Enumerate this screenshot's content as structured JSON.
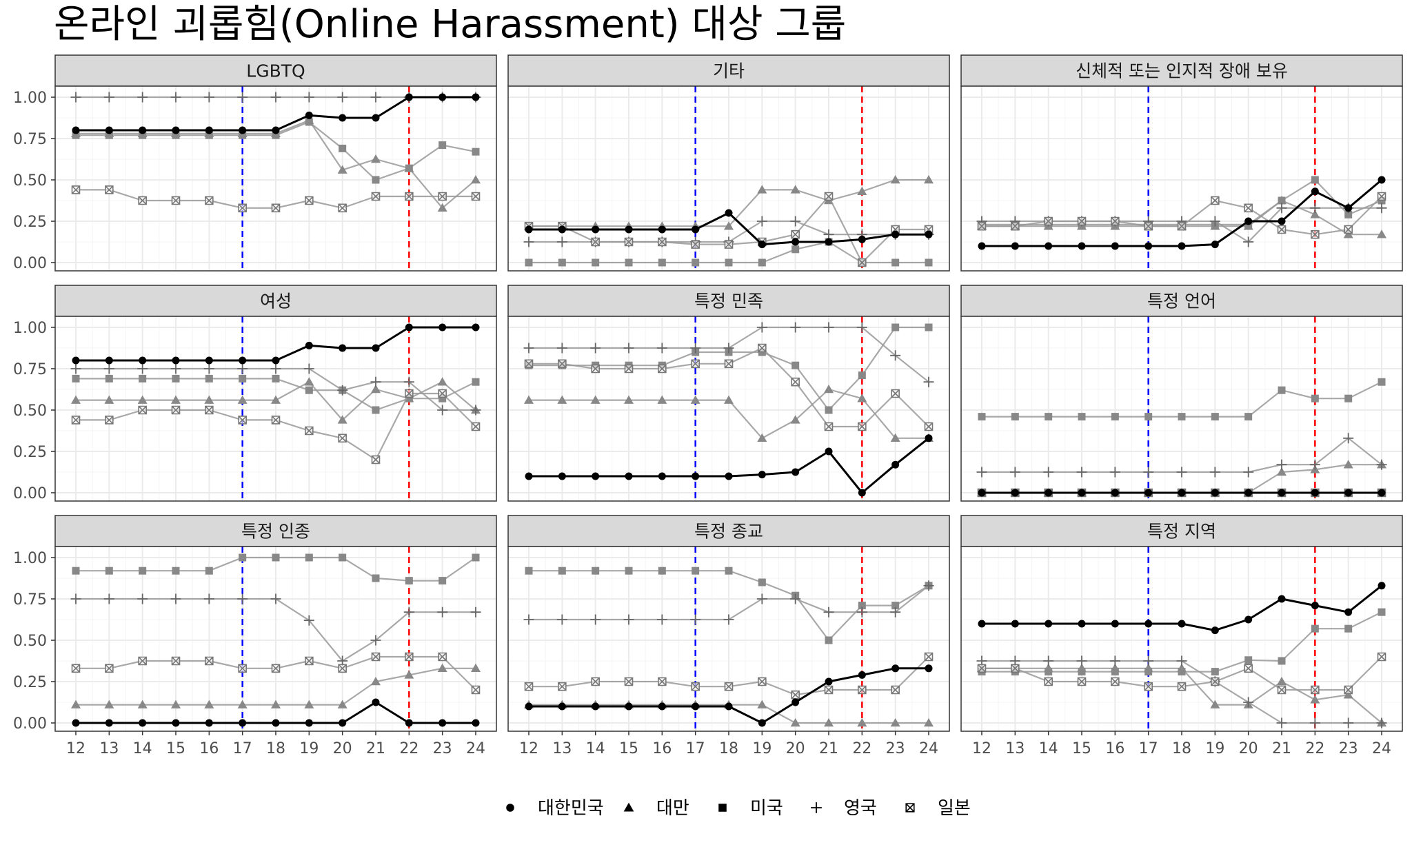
{
  "title": "온라인 괴롭힘(Online Harassment) 대상 그룹",
  "colors": {
    "grid": "#ebebeb",
    "panel_border": "#333333",
    "strip_fill": "#d9d9d9",
    "korea_line": "#000000",
    "other_lines": "#999999",
    "marker_other": "#888888",
    "vline_17": "#0000ff",
    "vline_22": "#ff0000"
  },
  "legend": {
    "position": "bottom",
    "items": [
      {
        "label": "대한민국",
        "shape": "circle"
      },
      {
        "label": "대만",
        "shape": "triangle"
      },
      {
        "label": "미국",
        "shape": "square"
      },
      {
        "label": "영국",
        "shape": "plus"
      },
      {
        "label": "일본",
        "shape": "square-x"
      }
    ]
  },
  "chart_data": {
    "type": "line",
    "layout": "facet-grid-3x3",
    "x": [
      12,
      13,
      14,
      15,
      16,
      17,
      18,
      19,
      20,
      21,
      22,
      23,
      24
    ],
    "ylim": [
      0,
      1
    ],
    "y_ticks": [
      "0.00",
      "0.25",
      "0.50",
      "0.75",
      "1.00"
    ],
    "x_ticks": [
      "12",
      "13",
      "14",
      "15",
      "16",
      "17",
      "18",
      "19",
      "20",
      "21",
      "22",
      "23",
      "24"
    ],
    "vlines": [
      {
        "x": 17,
        "color": "#0000ff",
        "style": "dashed"
      },
      {
        "x": 22,
        "color": "#ff0000",
        "style": "dashed"
      }
    ],
    "grid": true,
    "panels": [
      {
        "title": "LGBTQ",
        "series": [
          {
            "name": "대한민국",
            "values": [
              0.8,
              0.8,
              0.8,
              0.8,
              0.8,
              0.8,
              0.8,
              0.89,
              0.875,
              0.875,
              1.0,
              1.0,
              1.0
            ]
          },
          {
            "name": "대만",
            "values": [
              0.78,
              0.78,
              0.78,
              0.78,
              0.78,
              0.78,
              0.78,
              0.86,
              0.56,
              0.625,
              0.57,
              0.33,
              0.5
            ]
          },
          {
            "name": "미국",
            "values": [
              0.77,
              0.77,
              0.77,
              0.77,
              0.77,
              0.77,
              0.77,
              0.85,
              0.69,
              0.5,
              0.57,
              0.71,
              0.67
            ]
          },
          {
            "name": "영국",
            "values": [
              1.0,
              1.0,
              1.0,
              1.0,
              1.0,
              1.0,
              1.0,
              1.0,
              1.0,
              1.0,
              1.0,
              1.0,
              1.0
            ]
          },
          {
            "name": "일본",
            "values": [
              0.44,
              0.44,
              0.375,
              0.375,
              0.375,
              0.33,
              0.33,
              0.375,
              0.33,
              0.4,
              0.4,
              0.4,
              0.4
            ]
          }
        ]
      },
      {
        "title": "기타",
        "series": [
          {
            "name": "대한민국",
            "values": [
              0.2,
              0.2,
              0.2,
              0.2,
              0.2,
              0.2,
              0.3,
              0.11,
              0.125,
              0.125,
              0.14,
              0.17,
              0.17
            ]
          },
          {
            "name": "대만",
            "values": [
              0.22,
              0.22,
              0.22,
              0.22,
              0.22,
              0.22,
              0.22,
              0.44,
              0.44,
              0.375,
              0.43,
              0.5,
              0.5
            ]
          },
          {
            "name": "미국",
            "values": [
              0.0,
              0.0,
              0.0,
              0.0,
              0.0,
              0.0,
              0.0,
              0.0,
              0.08,
              0.125,
              0.0,
              0.0,
              0.0
            ]
          },
          {
            "name": "영국",
            "values": [
              0.125,
              0.125,
              0.125,
              0.125,
              0.125,
              0.125,
              0.125,
              0.25,
              0.25,
              0.17,
              0.17,
              0.17,
              0.17
            ]
          },
          {
            "name": "일본",
            "values": [
              0.22,
              0.22,
              0.125,
              0.125,
              0.125,
              0.11,
              0.11,
              0.125,
              0.17,
              0.4,
              0.0,
              0.2,
              0.2
            ]
          }
        ]
      },
      {
        "title": "신체적 또는 인지적 장애 보유",
        "series": [
          {
            "name": "대한민국",
            "values": [
              0.1,
              0.1,
              0.1,
              0.1,
              0.1,
              0.1,
              0.1,
              0.11,
              0.25,
              0.25,
              0.43,
              0.33,
              0.5
            ]
          },
          {
            "name": "대만",
            "values": [
              0.22,
              0.22,
              0.22,
              0.22,
              0.22,
              0.22,
              0.22,
              0.22,
              0.22,
              0.375,
              0.29,
              0.17,
              0.17
            ]
          },
          {
            "name": "미국",
            "values": [
              0.23,
              0.23,
              0.23,
              0.23,
              0.23,
              0.23,
              0.23,
              0.23,
              0.23,
              0.375,
              0.5,
              0.29,
              0.375
            ]
          },
          {
            "name": "영국",
            "values": [
              0.25,
              0.25,
              0.25,
              0.25,
              0.25,
              0.25,
              0.25,
              0.25,
              0.125,
              0.33,
              0.33,
              0.33,
              0.33
            ]
          },
          {
            "name": "일본",
            "values": [
              0.22,
              0.22,
              0.25,
              0.25,
              0.25,
              0.22,
              0.22,
              0.375,
              0.33,
              0.2,
              0.17,
              0.2,
              0.4
            ]
          }
        ]
      },
      {
        "title": "여성",
        "series": [
          {
            "name": "대한민국",
            "values": [
              0.8,
              0.8,
              0.8,
              0.8,
              0.8,
              0.8,
              0.8,
              0.89,
              0.875,
              0.875,
              1.0,
              1.0,
              1.0
            ]
          },
          {
            "name": "대만",
            "values": [
              0.56,
              0.56,
              0.56,
              0.56,
              0.56,
              0.56,
              0.56,
              0.67,
              0.44,
              0.625,
              0.57,
              0.67,
              0.5
            ]
          },
          {
            "name": "미국",
            "values": [
              0.69,
              0.69,
              0.69,
              0.69,
              0.69,
              0.69,
              0.69,
              0.62,
              0.62,
              0.5,
              0.57,
              0.57,
              0.67
            ]
          },
          {
            "name": "영국",
            "values": [
              0.75,
              0.75,
              0.75,
              0.75,
              0.75,
              0.75,
              0.75,
              0.75,
              0.62,
              0.67,
              0.67,
              0.5,
              0.5
            ]
          },
          {
            "name": "일본",
            "values": [
              0.44,
              0.44,
              0.5,
              0.5,
              0.5,
              0.44,
              0.44,
              0.375,
              0.33,
              0.2,
              0.6,
              0.6,
              0.4
            ]
          }
        ]
      },
      {
        "title": "특정 민족",
        "series": [
          {
            "name": "대한민국",
            "values": [
              0.1,
              0.1,
              0.1,
              0.1,
              0.1,
              0.1,
              0.1,
              0.11,
              0.125,
              0.25,
              0.0,
              0.17,
              0.33
            ]
          },
          {
            "name": "대만",
            "values": [
              0.56,
              0.56,
              0.56,
              0.56,
              0.56,
              0.56,
              0.56,
              0.33,
              0.44,
              0.625,
              0.57,
              0.33,
              0.33
            ]
          },
          {
            "name": "미국",
            "values": [
              0.77,
              0.77,
              0.77,
              0.77,
              0.77,
              0.85,
              0.85,
              0.85,
              0.77,
              0.5,
              0.71,
              1.0,
              1.0
            ]
          },
          {
            "name": "영국",
            "values": [
              0.875,
              0.875,
              0.875,
              0.875,
              0.875,
              0.875,
              0.875,
              1.0,
              1.0,
              1.0,
              1.0,
              0.83,
              0.67
            ]
          },
          {
            "name": "일본",
            "values": [
              0.78,
              0.78,
              0.75,
              0.75,
              0.75,
              0.78,
              0.78,
              0.875,
              0.67,
              0.4,
              0.4,
              0.6,
              0.4
            ]
          }
        ]
      },
      {
        "title": "특정 언어",
        "series": [
          {
            "name": "대한민국",
            "values": [
              0.0,
              0.0,
              0.0,
              0.0,
              0.0,
              0.0,
              0.0,
              0.0,
              0.0,
              0.0,
              0.0,
              0.0,
              0.0
            ]
          },
          {
            "name": "대만",
            "values": [
              0.0,
              0.0,
              0.0,
              0.0,
              0.0,
              0.0,
              0.0,
              0.0,
              0.0,
              0.125,
              0.14,
              0.17,
              0.17
            ]
          },
          {
            "name": "미국",
            "values": [
              0.46,
              0.46,
              0.46,
              0.46,
              0.46,
              0.46,
              0.46,
              0.46,
              0.46,
              0.62,
              0.57,
              0.57,
              0.67
            ]
          },
          {
            "name": "영국",
            "values": [
              0.125,
              0.125,
              0.125,
              0.125,
              0.125,
              0.125,
              0.125,
              0.125,
              0.125,
              0.17,
              0.17,
              0.33,
              0.17
            ]
          },
          {
            "name": "일본",
            "values": [
              0.0,
              0.0,
              0.0,
              0.0,
              0.0,
              0.0,
              0.0,
              0.0,
              0.0,
              0.0,
              0.0,
              0.0,
              0.0
            ]
          }
        ]
      },
      {
        "title": "특정 인종",
        "series": [
          {
            "name": "대한민국",
            "values": [
              0.0,
              0.0,
              0.0,
              0.0,
              0.0,
              0.0,
              0.0,
              0.0,
              0.0,
              0.125,
              0.0,
              0.0,
              0.0
            ]
          },
          {
            "name": "대만",
            "values": [
              0.11,
              0.11,
              0.11,
              0.11,
              0.11,
              0.11,
              0.11,
              0.11,
              0.11,
              0.25,
              0.29,
              0.33,
              0.33
            ]
          },
          {
            "name": "미국",
            "values": [
              0.92,
              0.92,
              0.92,
              0.92,
              0.92,
              1.0,
              1.0,
              1.0,
              1.0,
              0.875,
              0.86,
              0.86,
              1.0
            ]
          },
          {
            "name": "영국",
            "values": [
              0.75,
              0.75,
              0.75,
              0.75,
              0.75,
              0.75,
              0.75,
              0.62,
              0.375,
              0.5,
              0.67,
              0.67,
              0.67
            ]
          },
          {
            "name": "일본",
            "values": [
              0.33,
              0.33,
              0.375,
              0.375,
              0.375,
              0.33,
              0.33,
              0.375,
              0.33,
              0.4,
              0.4,
              0.4,
              0.2
            ]
          }
        ]
      },
      {
        "title": "특정 종교",
        "series": [
          {
            "name": "대한민국",
            "values": [
              0.1,
              0.1,
              0.1,
              0.1,
              0.1,
              0.1,
              0.1,
              0.0,
              0.125,
              0.25,
              0.29,
              0.33,
              0.33
            ]
          },
          {
            "name": "대만",
            "values": [
              0.11,
              0.11,
              0.11,
              0.11,
              0.11,
              0.11,
              0.11,
              0.11,
              0.0,
              0.0,
              0.0,
              0.0,
              0.0
            ]
          },
          {
            "name": "미국",
            "values": [
              0.92,
              0.92,
              0.92,
              0.92,
              0.92,
              0.92,
              0.92,
              0.85,
              0.77,
              0.5,
              0.71,
              0.71,
              0.83
            ]
          },
          {
            "name": "영국",
            "values": [
              0.625,
              0.625,
              0.625,
              0.625,
              0.625,
              0.625,
              0.625,
              0.75,
              0.75,
              0.67,
              0.67,
              0.67,
              0.83
            ]
          },
          {
            "name": "일본",
            "values": [
              0.22,
              0.22,
              0.25,
              0.25,
              0.25,
              0.22,
              0.22,
              0.25,
              0.17,
              0.2,
              0.2,
              0.2,
              0.4
            ]
          }
        ]
      },
      {
        "title": "특정 지역",
        "series": [
          {
            "name": "대한민국",
            "values": [
              0.6,
              0.6,
              0.6,
              0.6,
              0.6,
              0.6,
              0.6,
              0.56,
              0.625,
              0.75,
              0.71,
              0.67,
              0.83
            ]
          },
          {
            "name": "대만",
            "values": [
              0.33,
              0.33,
              0.33,
              0.33,
              0.33,
              0.33,
              0.33,
              0.11,
              0.11,
              0.25,
              0.14,
              0.17,
              0.0
            ]
          },
          {
            "name": "미국",
            "values": [
              0.31,
              0.31,
              0.31,
              0.31,
              0.31,
              0.31,
              0.31,
              0.31,
              0.38,
              0.375,
              0.57,
              0.57,
              0.67
            ]
          },
          {
            "name": "영국",
            "values": [
              0.375,
              0.375,
              0.375,
              0.375,
              0.375,
              0.375,
              0.375,
              0.25,
              0.125,
              0.0,
              0.0,
              0.0,
              0.0
            ]
          },
          {
            "name": "일본",
            "values": [
              0.33,
              0.33,
              0.25,
              0.25,
              0.25,
              0.22,
              0.22,
              0.25,
              0.33,
              0.2,
              0.2,
              0.2,
              0.4
            ]
          }
        ]
      }
    ]
  }
}
